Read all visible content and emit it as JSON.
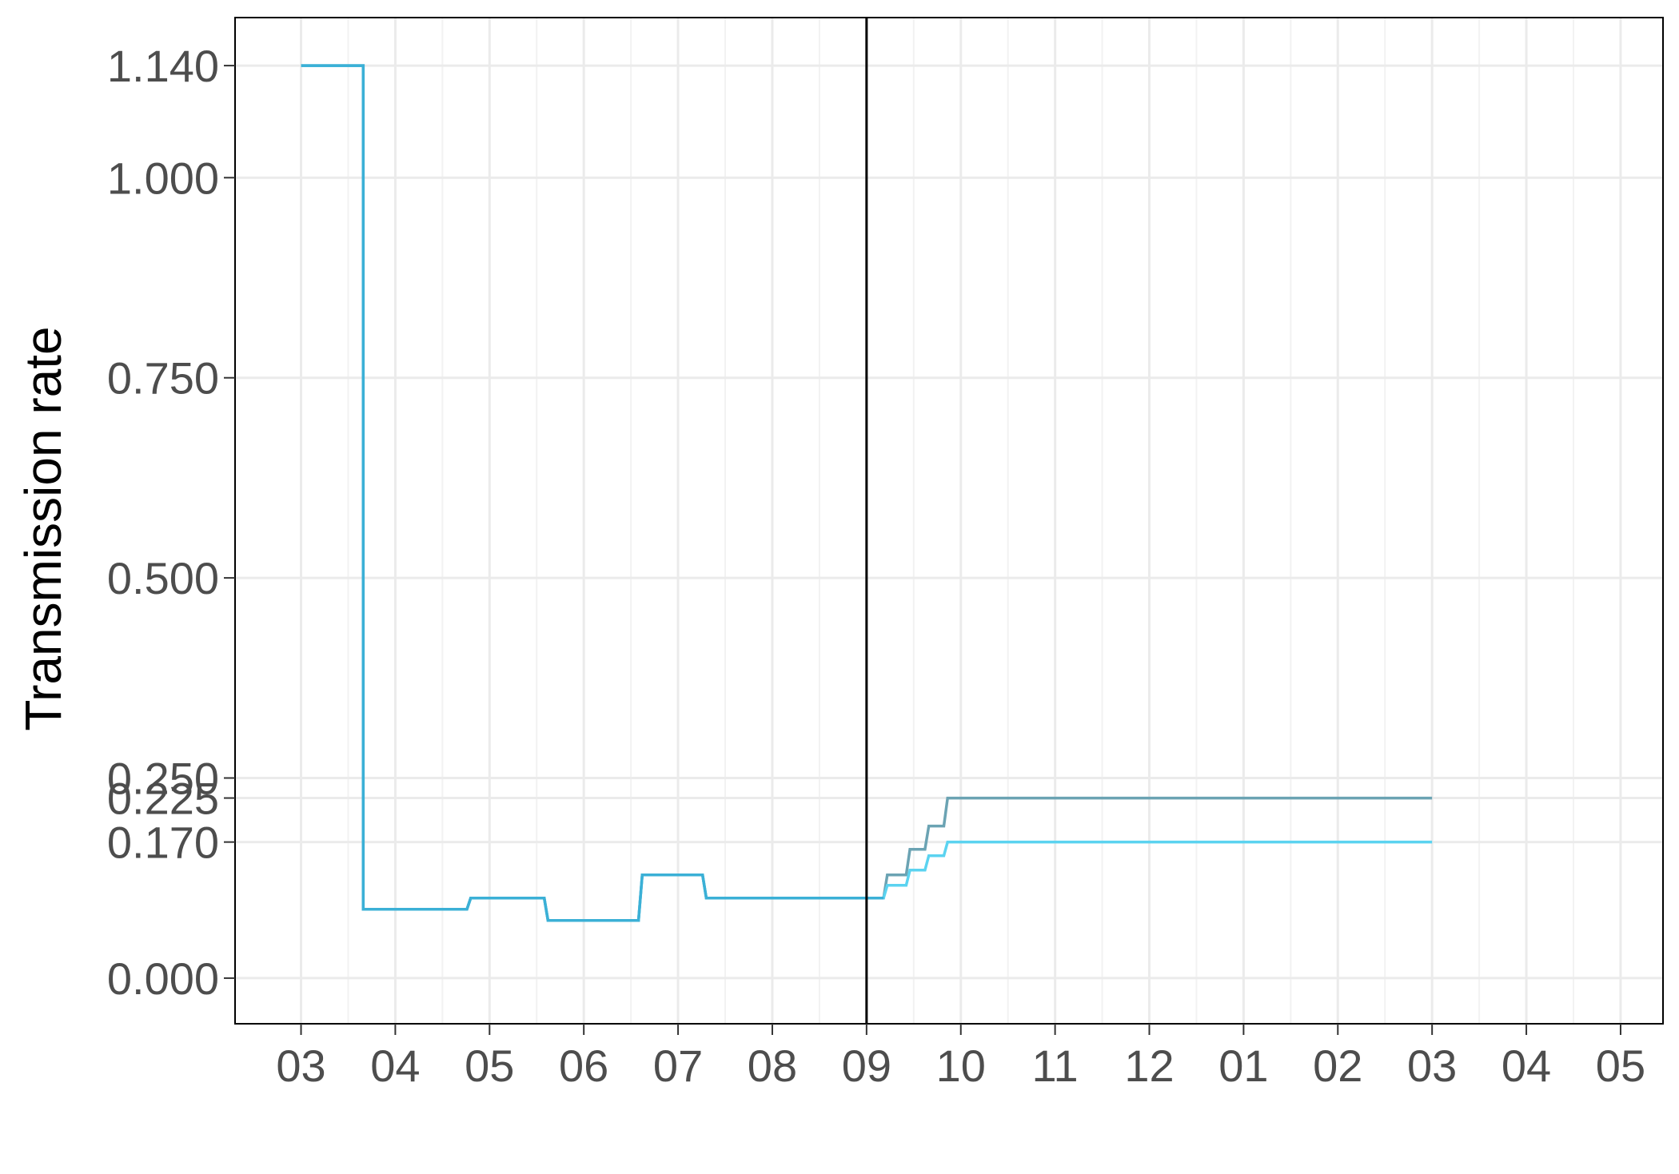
{
  "chart_data": {
    "type": "line",
    "title": "",
    "xlabel": "",
    "ylabel": "Transmission rate",
    "x_tick_labels": [
      "03",
      "04",
      "05",
      "06",
      "07",
      "08",
      "09",
      "10",
      "11",
      "12",
      "01",
      "02",
      "03",
      "04",
      "05"
    ],
    "x_range_months": [
      -0.7,
      14.45
    ],
    "y_tick_labels": [
      "0.000",
      "0.170",
      "0.225",
      "0.250",
      "0.500",
      "0.750",
      "1.000",
      "1.140"
    ],
    "y_tick_values": [
      0,
      0.17,
      0.225,
      0.25,
      0.5,
      0.75,
      1.0,
      1.14
    ],
    "ylim": [
      -0.057,
      1.2
    ],
    "grid": true,
    "vline_month": 6.0,
    "series": [
      {
        "color": "#6BA3B3",
        "x_months": [
          0.0,
          0.62,
          0.66,
          0.66,
          1.76,
          1.8,
          2.58,
          2.62,
          3.58,
          3.62,
          4.26,
          4.3,
          6.18,
          6.22,
          6.42,
          6.46,
          6.62,
          6.66,
          6.82,
          6.86,
          12.0
        ],
        "y": [
          1.14,
          1.14,
          1.14,
          0.086,
          0.086,
          0.1,
          0.1,
          0.072,
          0.072,
          0.129,
          0.129,
          0.1,
          0.1,
          0.129,
          0.129,
          0.161,
          0.161,
          0.19,
          0.19,
          0.225,
          0.225
        ]
      },
      {
        "color": "#5BD3F0",
        "x_months": [
          0.0,
          0.62,
          0.66,
          0.66,
          1.76,
          1.8,
          2.58,
          2.62,
          3.58,
          3.62,
          4.26,
          4.3,
          6.18,
          6.22,
          6.42,
          6.46,
          6.62,
          6.66,
          6.82,
          6.86,
          12.0
        ],
        "y": [
          1.14,
          1.14,
          1.14,
          0.086,
          0.086,
          0.1,
          0.1,
          0.072,
          0.072,
          0.129,
          0.129,
          0.1,
          0.1,
          0.116,
          0.116,
          0.135,
          0.135,
          0.153,
          0.153,
          0.17,
          0.17
        ]
      },
      {
        "color": "#3BB0D6",
        "x_months": [
          0.0,
          0.62,
          0.66,
          0.66,
          1.76,
          1.8,
          2.58,
          2.62,
          3.58,
          3.62,
          4.26,
          4.3,
          6.18
        ],
        "y": [
          1.14,
          1.14,
          1.14,
          0.086,
          0.086,
          0.1,
          0.1,
          0.072,
          0.072,
          0.129,
          0.129,
          0.1,
          0.1
        ]
      }
    ]
  }
}
